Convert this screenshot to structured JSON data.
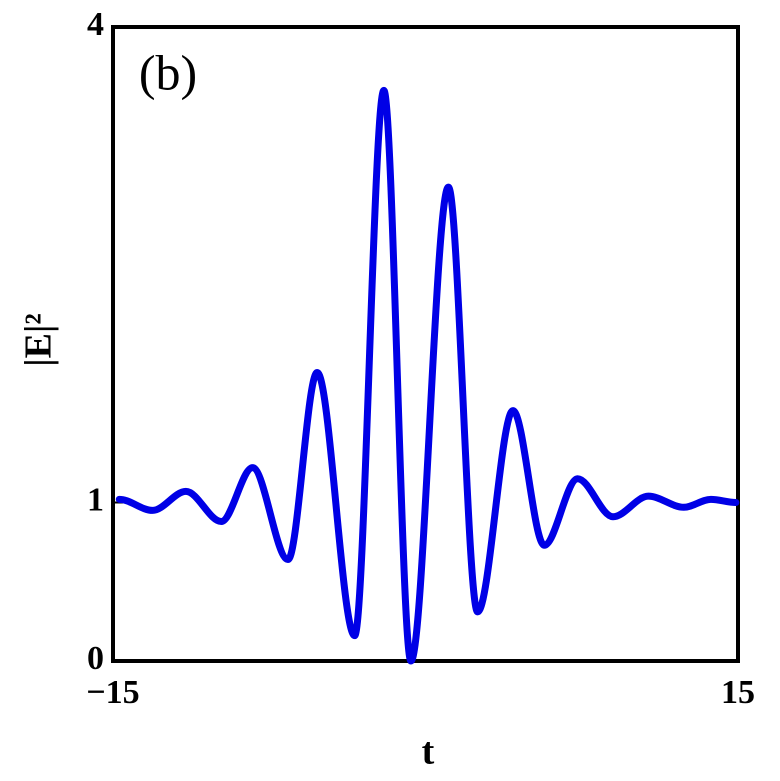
{
  "chart_data": {
    "type": "line",
    "annotation": "(b)",
    "xlabel": "t",
    "ylabel": "|E|²",
    "x": [
      -14.7,
      -13.1,
      -11.5,
      -9.8,
      -8.3,
      -6.6,
      -5.2,
      -3.4,
      -2.0,
      -0.7,
      1.1,
      2.5,
      4.2,
      5.7,
      7.3,
      9.0,
      10.7,
      12.4,
      13.7,
      14.9
    ],
    "series": [
      {
        "name": "|E|²",
        "color": "#0000e6",
        "values": [
          1.02,
          0.95,
          1.07,
          0.88,
          1.22,
          0.64,
          1.82,
          0.16,
          3.6,
          0.0,
          2.99,
          0.31,
          1.58,
          0.73,
          1.15,
          0.91,
          1.04,
          0.97,
          1.02,
          1.0
        ]
      }
    ],
    "xlim": [
      -15,
      15
    ],
    "ylim": [
      0,
      4
    ],
    "xticks": [
      {
        "value": -15,
        "label": "−15"
      },
      15
    ],
    "yticks": [
      0,
      1,
      4
    ],
    "grid": false
  }
}
